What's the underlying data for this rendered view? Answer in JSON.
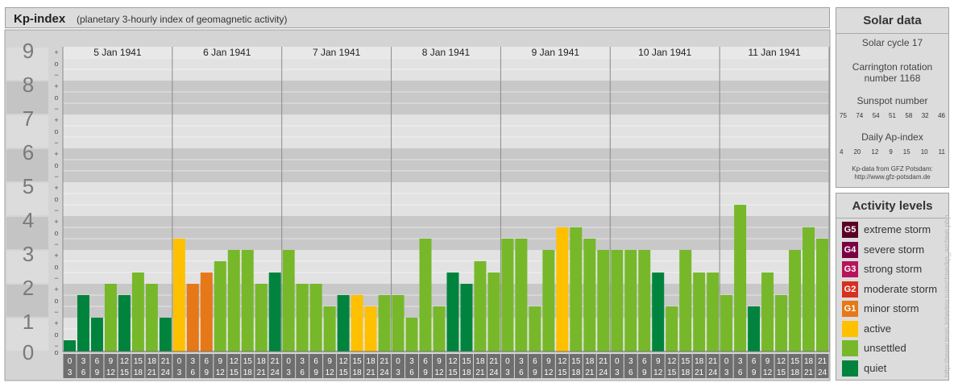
{
  "header": {
    "title": "Kp-index",
    "subtitle": "(planetary 3-hourly index of geomagnetic activity)"
  },
  "chart_data": {
    "type": "bar",
    "title": "Kp-index",
    "subtitle": "(planetary 3-hourly index of geomagnetic activity)",
    "ylim": [
      0,
      9
    ],
    "y_ticks": [
      "0",
      "1",
      "2",
      "3",
      "4",
      "5",
      "6",
      "7",
      "8",
      "9"
    ],
    "minor_ticks": [
      "+",
      "o",
      "−"
    ],
    "days": [
      "5 Jan 1941",
      "6 Jan 1941",
      "7 Jan 1941",
      "8 Jan 1941",
      "9 Jan 1941",
      "10 Jan 1941",
      "11 Jan 1941"
    ],
    "interval_labels": [
      [
        "0",
        "3"
      ],
      [
        "3",
        "6"
      ],
      [
        "6",
        "9"
      ],
      [
        "9",
        "12"
      ],
      [
        "12",
        "15"
      ],
      [
        "15",
        "18"
      ],
      [
        "18",
        "21"
      ],
      [
        "21",
        "24"
      ]
    ],
    "values": [
      [
        0.333,
        1.667,
        1.0,
        2.0,
        1.667,
        2.333,
        2.0,
        1.0
      ],
      [
        3.333,
        2.0,
        2.333,
        2.667,
        3.0,
        3.0,
        2.0,
        2.333
      ],
      [
        3.0,
        2.0,
        2.0,
        1.333,
        1.667,
        1.667,
        1.333,
        1.667
      ],
      [
        1.667,
        1.0,
        3.333,
        1.333,
        2.333,
        2.0,
        2.667,
        2.333
      ],
      [
        3.333,
        3.333,
        1.333,
        3.0,
        3.667,
        3.667,
        3.333,
        3.0
      ],
      [
        3.0,
        3.0,
        3.0,
        2.333,
        1.333,
        3.0,
        2.333,
        2.333
      ],
      [
        1.667,
        4.333,
        1.333,
        2.333,
        1.667,
        3.0,
        3.667,
        3.333
      ]
    ],
    "bar_colors": [
      [
        "#00843d",
        "#00843d",
        "#00843d",
        "#76b82a",
        "#00843d",
        "#76b82a",
        "#76b82a",
        "#00843d"
      ],
      [
        "#ffc000",
        "#e67817",
        "#e67817",
        "#76b82a",
        "#76b82a",
        "#76b82a",
        "#76b82a",
        "#00843d"
      ],
      [
        "#76b82a",
        "#76b82a",
        "#76b82a",
        "#76b82a",
        "#00843d",
        "#ffc000",
        "#ffc000",
        "#76b82a"
      ],
      [
        "#76b82a",
        "#76b82a",
        "#76b82a",
        "#76b82a",
        "#00843d",
        "#00843d",
        "#76b82a",
        "#76b82a"
      ],
      [
        "#76b82a",
        "#76b82a",
        "#76b82a",
        "#76b82a",
        "#ffc000",
        "#76b82a",
        "#76b82a",
        "#76b82a"
      ],
      [
        "#76b82a",
        "#76b82a",
        "#76b82a",
        "#00843d",
        "#76b82a",
        "#76b82a",
        "#76b82a",
        "#76b82a"
      ],
      [
        "#76b82a",
        "#76b82a",
        "#00843d",
        "#76b82a",
        "#76b82a",
        "#76b82a",
        "#76b82a",
        "#76b82a"
      ]
    ]
  },
  "solar": {
    "heading": "Solar data",
    "cycle": "Solar cycle 17",
    "carrington_line1": "Carrington rotation",
    "carrington_line2": "number 1168",
    "sunspot_label": "Sunspot number",
    "sunspot_numbers": [
      "75",
      "74",
      "54",
      "51",
      "58",
      "32",
      "46"
    ],
    "ap_label": "Daily Ap-index",
    "ap_values": [
      "4",
      "20",
      "12",
      "9",
      "15",
      "10",
      "11"
    ],
    "source_line1": "Kp-data from GFZ Potsdam:",
    "source_line2": "http://www.gfz-potsdam.de"
  },
  "activity": {
    "heading": "Activity levels",
    "levels": [
      {
        "code": "G5",
        "label": "extreme storm",
        "color": "#5a0025"
      },
      {
        "code": "G4",
        "label": "severe storm",
        "color": "#7a0045"
      },
      {
        "code": "G3",
        "label": "strong storm",
        "color": "#b7145a"
      },
      {
        "code": "G2",
        "label": "moderate storm",
        "color": "#d7301f"
      },
      {
        "code": "G1",
        "label": "minor storm",
        "color": "#e67817"
      },
      {
        "code": "",
        "label": "active",
        "color": "#ffc000"
      },
      {
        "code": "",
        "label": "unsettled",
        "color": "#76b82a"
      },
      {
        "code": "",
        "label": "quiet",
        "color": "#00843d"
      }
    ]
  },
  "watermark": "http://www.tesis.lebedev.ru/archive/kp_archive.php"
}
